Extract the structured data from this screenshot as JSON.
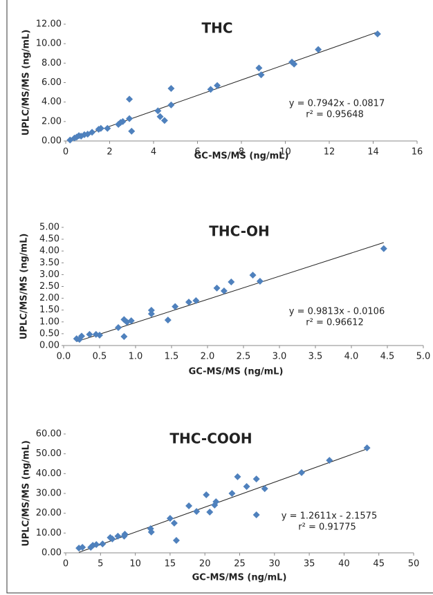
{
  "chart_data": [
    {
      "type": "scatter",
      "title": "THC",
      "x_label": "GC-MS/MS (ng/mL)",
      "y_label": "UPLC/MS/MS (ng/mL)",
      "color": "#4f81bd",
      "x": [
        0.2,
        0.4,
        0.5,
        0.6,
        0.7,
        0.85,
        1.0,
        1.2,
        1.5,
        1.6,
        1.9,
        2.4,
        2.5,
        2.6,
        2.9,
        2.9,
        3.0,
        4.2,
        4.3,
        4.5,
        4.8,
        4.8,
        6.6,
        6.9,
        8.8,
        8.9,
        10.3,
        10.4,
        11.5,
        14.2
      ],
      "values": [
        0.1,
        0.3,
        0.4,
        0.55,
        0.5,
        0.65,
        0.7,
        0.9,
        1.2,
        1.3,
        1.3,
        1.7,
        1.9,
        2.0,
        2.3,
        4.3,
        1.0,
        3.1,
        2.5,
        2.1,
        5.4,
        3.7,
        5.3,
        5.7,
        7.5,
        6.8,
        8.1,
        7.9,
        9.4,
        11.0
      ],
      "xlim": [
        0,
        16
      ],
      "ylim": [
        0,
        12
      ],
      "xticks": [
        0,
        2,
        4,
        6,
        8,
        10,
        12,
        14,
        16
      ],
      "yticks": [
        {
          "value": 0,
          "label": "0.00"
        },
        {
          "value": 2,
          "label": "2.00"
        },
        {
          "value": 4,
          "label": "4.00"
        },
        {
          "value": 6,
          "label": "6.00"
        },
        {
          "value": 8,
          "label": "8.00"
        },
        {
          "value": 10,
          "label": "10.00"
        },
        {
          "value": 12,
          "label": "12.00"
        }
      ],
      "trendline": {
        "slope": 0.7942,
        "intercept": -0.0817,
        "equation": "y = 0.7942x - 0.0817",
        "r2_label": "r² = 0.95648"
      }
    },
    {
      "type": "scatter",
      "title": "THC-OH",
      "x_label": "GC-MS/MS (ng/mL)",
      "y_label": "UPLC/MS/MS (ng/mL)",
      "color": "#4f81bd",
      "x": [
        0.18,
        0.22,
        0.25,
        0.36,
        0.45,
        0.5,
        0.76,
        0.84,
        0.84,
        0.88,
        0.94,
        1.22,
        1.22,
        1.45,
        1.55,
        1.74,
        1.84,
        2.13,
        2.23,
        2.33,
        2.63,
        2.73,
        4.45
      ],
      "values": [
        0.29,
        0.26,
        0.4,
        0.47,
        0.47,
        0.44,
        0.76,
        1.1,
        0.38,
        0.99,
        1.05,
        1.49,
        1.34,
        1.08,
        1.65,
        1.84,
        1.9,
        2.43,
        2.31,
        2.69,
        2.98,
        2.72,
        4.1
      ],
      "xlim": [
        0,
        5
      ],
      "ylim": [
        0,
        5
      ],
      "xticks": [
        {
          "value": 0,
          "label": "0.0"
        },
        {
          "value": 0.5,
          "label": "0.5"
        },
        {
          "value": 1,
          "label": "1.0"
        },
        {
          "value": 1.5,
          "label": "1.5"
        },
        {
          "value": 2,
          "label": "2.0"
        },
        {
          "value": 2.5,
          "label": "2.5"
        },
        {
          "value": 3,
          "label": "3.0"
        },
        {
          "value": 3.5,
          "label": "3.5"
        },
        {
          "value": 4,
          "label": "4.0"
        },
        {
          "value": 4.5,
          "label": "4.5"
        },
        {
          "value": 5,
          "label": "5.0"
        }
      ],
      "yticks": [
        {
          "value": 0,
          "label": "0.00"
        },
        {
          "value": 0.5,
          "label": "0.50"
        },
        {
          "value": 1,
          "label": "1.00"
        },
        {
          "value": 1.5,
          "label": "1.50"
        },
        {
          "value": 2,
          "label": "2.00"
        },
        {
          "value": 2.5,
          "label": "2.50"
        },
        {
          "value": 3,
          "label": "3.00"
        },
        {
          "value": 3.5,
          "label": "3.50"
        },
        {
          "value": 4,
          "label": "4.00"
        },
        {
          "value": 4.5,
          "label": "4.50"
        },
        {
          "value": 5,
          "label": "5.00"
        }
      ],
      "trendline": {
        "slope": 0.9813,
        "intercept": -0.0106,
        "equation": "y = 0.9813x - 0.0106",
        "r2_label": "r² = 0.96612"
      }
    },
    {
      "type": "scatter",
      "title": "THC-COOH",
      "x_label": "GC-MS/MS (ng/mL)",
      "y_label": "UPLC/MS/MS (ng/mL)",
      "color": "#4f81bd",
      "x": [
        1.9,
        2.4,
        3.6,
        3.9,
        4.4,
        5.3,
        6.4,
        6.7,
        7.5,
        8.4,
        8.5,
        12.2,
        12.3,
        15.0,
        15.6,
        15.9,
        17.7,
        18.8,
        20.2,
        20.7,
        21.4,
        21.6,
        23.9,
        24.7,
        26.0,
        27.4,
        27.4,
        28.6,
        33.9,
        37.9,
        43.3
      ],
      "values": [
        2.4,
        2.8,
        2.8,
        3.8,
        4.2,
        4.5,
        7.7,
        7.0,
        8.4,
        8.4,
        9.4,
        12.2,
        10.5,
        17.4,
        15.0,
        6.3,
        23.7,
        20.9,
        29.3,
        20.6,
        24.1,
        25.8,
        30.0,
        38.4,
        33.5,
        37.3,
        19.2,
        32.4,
        40.5,
        46.7,
        53.0
      ],
      "xlim": [
        0,
        50
      ],
      "ylim": [
        0,
        60
      ],
      "xticks": [
        0,
        5,
        10,
        15,
        20,
        25,
        30,
        35,
        40,
        45,
        50
      ],
      "yticks": [
        {
          "value": 0,
          "label": "0.00"
        },
        {
          "value": 10,
          "label": "10.00"
        },
        {
          "value": 20,
          "label": "20.00"
        },
        {
          "value": 30,
          "label": "30.00"
        },
        {
          "value": 40,
          "label": "40.00"
        },
        {
          "value": 50,
          "label": "50.00"
        },
        {
          "value": 60,
          "label": "60.00"
        }
      ],
      "trendline": {
        "slope": 1.2611,
        "intercept": -2.1575,
        "equation": "y = 1.2611x - 2.1575",
        "r2_label": "r² = 0.91775"
      }
    }
  ]
}
